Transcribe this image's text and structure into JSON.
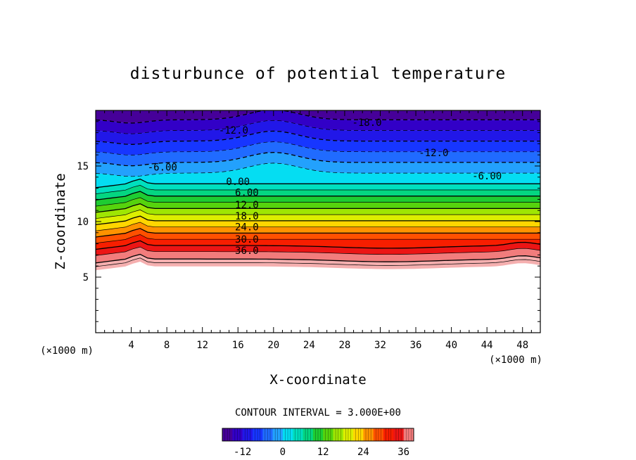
{
  "chart_data": {
    "type": "contour",
    "title": "disturbunce of potential temperature",
    "xlabel": "X-coordinate",
    "ylabel": "Z-coordinate",
    "x_unit": "(×1000 m)",
    "z_unit": "(×1000 m)",
    "xlim": [
      0,
      50
    ],
    "ylim": [
      0,
      20
    ],
    "x_ticks": [
      4,
      8,
      12,
      16,
      20,
      24,
      28,
      32,
      36,
      40,
      44,
      48
    ],
    "y_ticks": [
      5,
      10,
      15
    ],
    "contour_interval_text": "CONTOUR INTERVAL = 3.000E+00",
    "contour_interval": 3.0,
    "value_range": [
      -18,
      39
    ],
    "contour_labels": [
      {
        "text": "-18.0",
        "x": 30.5,
        "z": 18.6
      },
      {
        "text": "-12.0",
        "x": 15.5,
        "z": 17.9
      },
      {
        "text": "-12.0",
        "x": 38.0,
        "z": 15.9
      },
      {
        "text": "-6.00",
        "x": 7.5,
        "z": 14.6
      },
      {
        "text": "-6.00",
        "x": 44.0,
        "z": 13.8
      },
      {
        "text": "0.00",
        "x": 16.0,
        "z": 13.3
      },
      {
        "text": "6.00",
        "x": 17.0,
        "z": 12.3
      },
      {
        "text": "12.0",
        "x": 17.0,
        "z": 11.2
      },
      {
        "text": "18.0",
        "x": 17.0,
        "z": 10.2
      },
      {
        "text": "24.0",
        "x": 17.0,
        "z": 9.2
      },
      {
        "text": "30.0",
        "x": 17.0,
        "z": 8.1
      },
      {
        "text": "36.0",
        "x": 17.0,
        "z": 7.1
      }
    ],
    "colorbar": {
      "ticks": [
        "-12",
        "0",
        "12",
        "24",
        "36"
      ],
      "tick_values": [
        -12,
        0,
        12,
        24,
        36
      ],
      "min": -18,
      "max": 39,
      "levels": 19
    }
  }
}
